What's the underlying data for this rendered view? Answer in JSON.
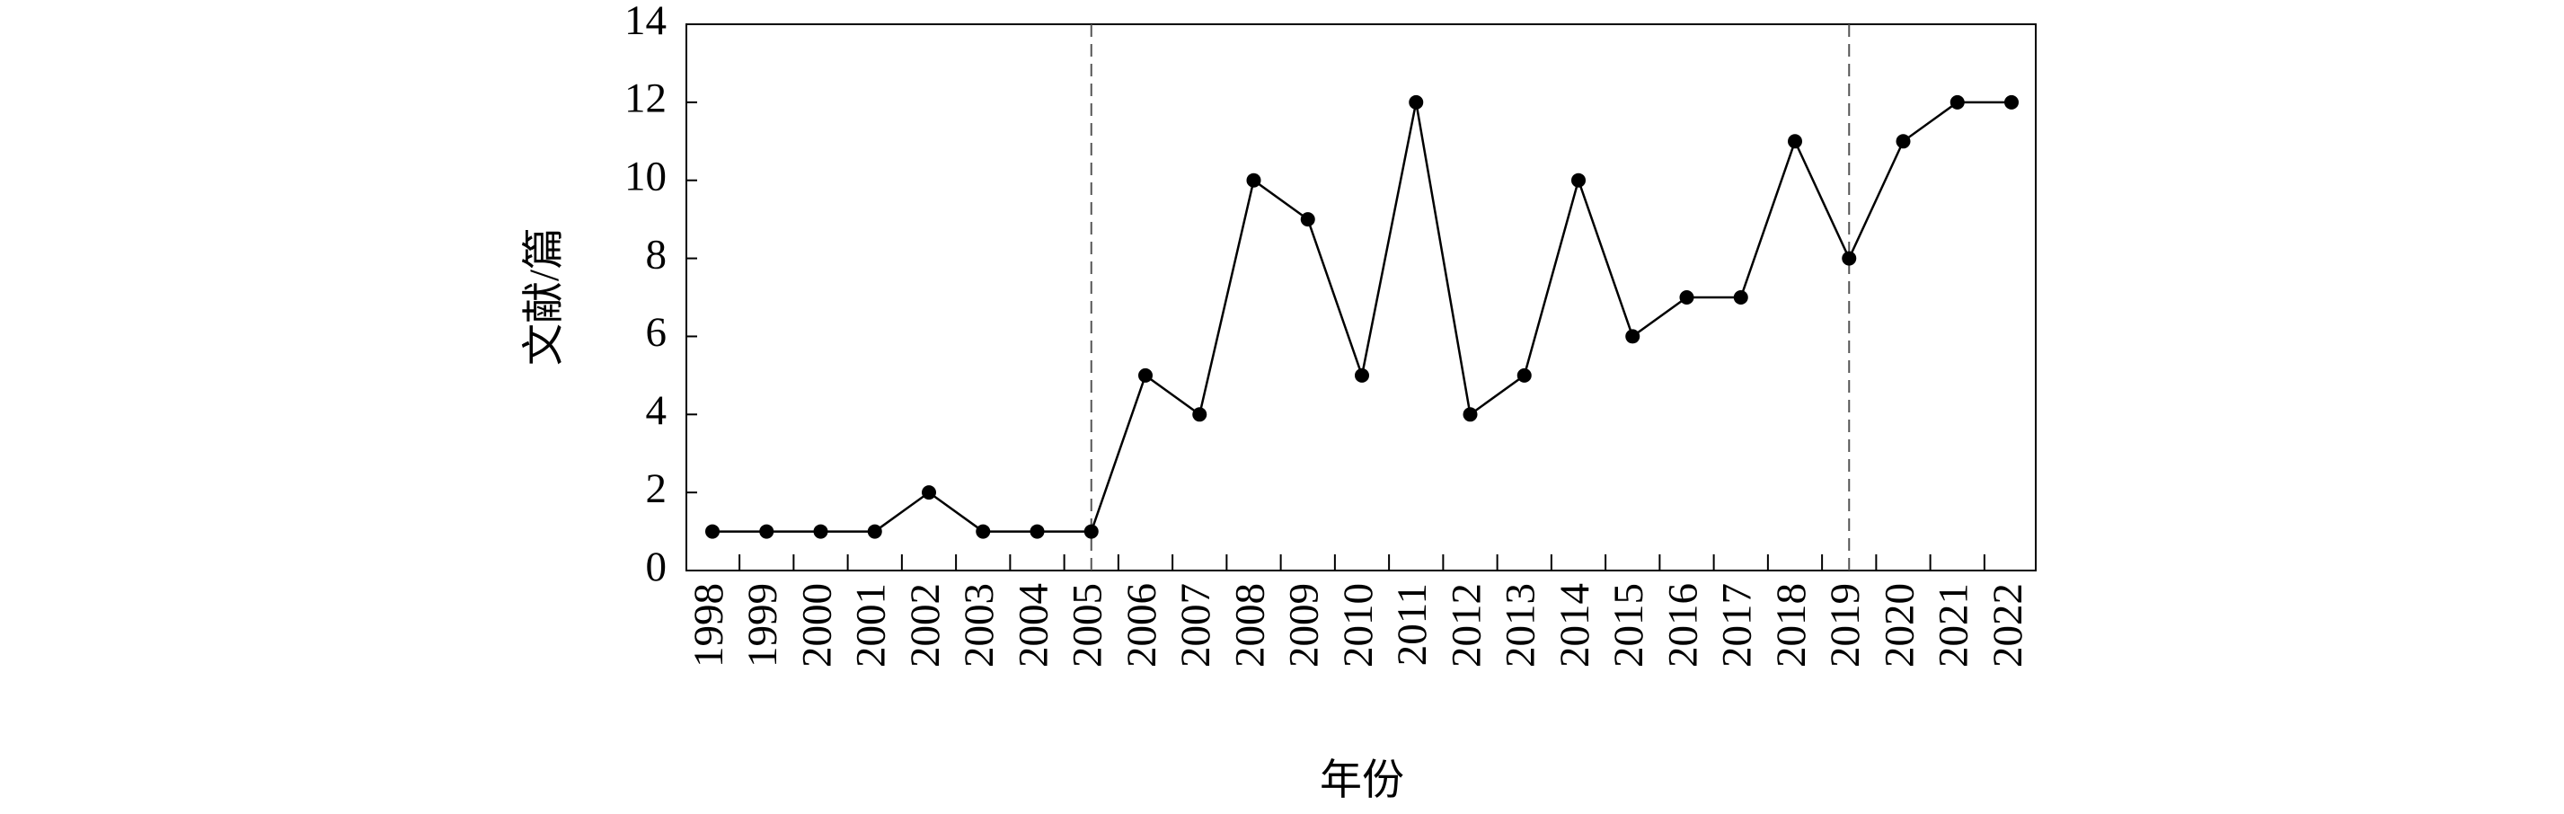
{
  "chart_data": {
    "type": "line",
    "x_label": "年份",
    "y_label": "文献/篇",
    "categories": [
      "1998",
      "1999",
      "2000",
      "2001",
      "2002",
      "2003",
      "2004",
      "2005",
      "2006",
      "2007",
      "2008",
      "2009",
      "2010",
      "2011",
      "2012",
      "2013",
      "2014",
      "2015",
      "2016",
      "2017",
      "2018",
      "2019",
      "2020",
      "2021",
      "2022"
    ],
    "values": [
      1,
      1,
      1,
      1,
      2,
      1,
      1,
      1,
      5,
      4,
      10,
      9,
      5,
      12,
      4,
      5,
      10,
      6,
      7,
      7,
      11,
      8,
      11,
      12,
      12
    ],
    "color": "#000000",
    "ylim": [
      0,
      14
    ],
    "yticks": [
      0,
      2,
      4,
      6,
      8,
      10,
      12,
      14
    ],
    "vlines": [
      "2005",
      "2019"
    ],
    "grid": false
  }
}
